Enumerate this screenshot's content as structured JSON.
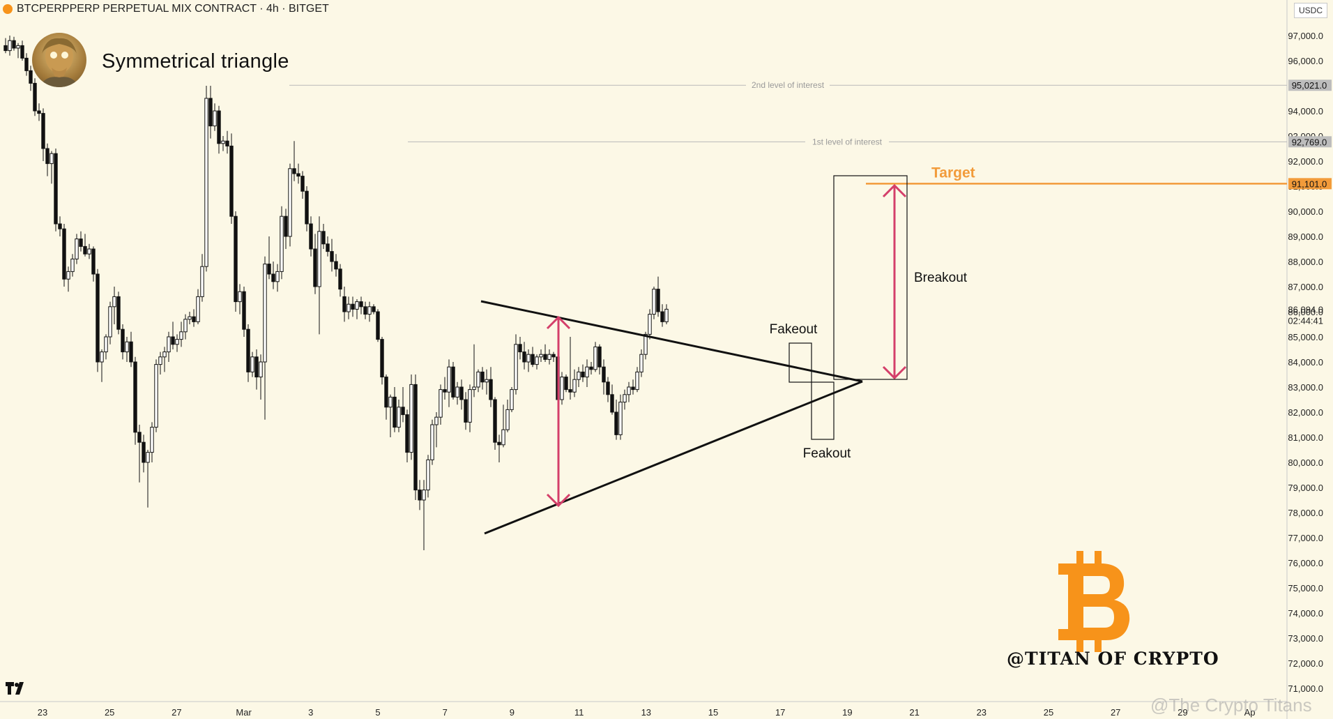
{
  "header": {
    "symbol_text": "BTCPERPPERP PERPETUAL MIX CONTRACT · 4h · BITGET",
    "currency": "USDC"
  },
  "overlay": {
    "title": "Symmetrical triangle",
    "handle": "@TITAN OF CRYPTO",
    "watermark": "@The Crypto Titans",
    "platform_logo": "TradingView",
    "brand_icon": "bitcoin-b-icon"
  },
  "colors": {
    "background": "#fcf8e6",
    "candle": "#111111",
    "target": "#f29b3a",
    "arrow": "#d43f6a",
    "bitcoin": "#f7931a"
  },
  "chart_data": {
    "type": "candlestick",
    "timeframe": "4h",
    "ylim": [
      70500,
      98200
    ],
    "y_ticks": [
      "97,000.0",
      "96,000.0",
      "95,000.0",
      "94,000.0",
      "93,000.0",
      "92,000.0",
      "91,000.0",
      "90,000.0",
      "89,000.0",
      "88,000.0",
      "87,000.0",
      "86,000.0",
      "85,000.0",
      "84,000.0",
      "83,000.0",
      "82,000.0",
      "81,000.0",
      "80,000.0",
      "79,000.0",
      "78,000.0",
      "77,000.0",
      "76,000.0",
      "75,000.0",
      "74,000.0",
      "73,000.0",
      "72,000.0",
      "71,000.0"
    ],
    "x_ticks": [
      "23",
      "25",
      "27",
      "Mar",
      "3",
      "5",
      "7",
      "9",
      "11",
      "13",
      "15",
      "17",
      "19",
      "21",
      "23",
      "25",
      "27",
      "29",
      "Ap"
    ],
    "price_tags": [
      {
        "label": "95,021.0",
        "value": 95021,
        "style": "grey"
      },
      {
        "label": "92,769.0",
        "value": 92769,
        "style": "grey"
      },
      {
        "label": "91,101.0",
        "value": 91101,
        "style": "orange"
      },
      {
        "label": "86,094.0",
        "value": 86094,
        "style": "plain"
      },
      {
        "label": "02:44:41",
        "value": 85650,
        "style": "plain"
      }
    ],
    "levels": [
      {
        "label": "2nd level of interest",
        "price": 95021
      },
      {
        "label": "1st level of interest",
        "price": 92769
      },
      {
        "label": "Target",
        "price": 91101
      }
    ],
    "annotations": [
      "Fakeout",
      "Feakout",
      "Breakout"
    ],
    "ohlc": [
      [
        96600,
        96900,
        96300,
        96400
      ],
      [
        96400,
        97000,
        96200,
        96800
      ],
      [
        96800,
        96950,
        96400,
        96500
      ],
      [
        96500,
        96700,
        96100,
        96600
      ],
      [
        96600,
        96800,
        96000,
        96100
      ],
      [
        96100,
        96300,
        95400,
        95600
      ],
      [
        95600,
        95800,
        94800,
        95100
      ],
      [
        95100,
        95300,
        93800,
        94000
      ],
      [
        94000,
        94300,
        93600,
        93900
      ],
      [
        93900,
        94100,
        92000,
        92500
      ],
      [
        92500,
        92700,
        91400,
        91900
      ],
      [
        91900,
        92400,
        91100,
        92300
      ],
      [
        92300,
        92500,
        89200,
        89500
      ],
      [
        89500,
        89800,
        89000,
        89300
      ],
      [
        89300,
        89500,
        87000,
        87300
      ],
      [
        87300,
        87800,
        86800,
        87600
      ],
      [
        87600,
        88300,
        87400,
        88100
      ],
      [
        88100,
        89100,
        87900,
        88900
      ],
      [
        88900,
        89200,
        88400,
        88600
      ],
      [
        88600,
        89100,
        88200,
        88300
      ],
      [
        88300,
        88700,
        88100,
        88500
      ],
      [
        88500,
        88600,
        87200,
        87500
      ],
      [
        87500,
        87700,
        83600,
        84000
      ],
      [
        84000,
        84500,
        83200,
        84400
      ],
      [
        84400,
        85100,
        84100,
        85000
      ],
      [
        85000,
        86400,
        84700,
        86200
      ],
      [
        86200,
        87000,
        85500,
        86600
      ],
      [
        86600,
        86800,
        85100,
        85300
      ],
      [
        85300,
        85500,
        84100,
        84400
      ],
      [
        84400,
        85000,
        84000,
        84800
      ],
      [
        84800,
        85200,
        83800,
        84000
      ],
      [
        84000,
        84200,
        80700,
        81200
      ],
      [
        81200,
        81500,
        79200,
        80800
      ],
      [
        80800,
        81100,
        79600,
        80000
      ],
      [
        80000,
        80500,
        78200,
        80400
      ],
      [
        80400,
        81600,
        80000,
        81400
      ],
      [
        81400,
        84100,
        81200,
        83900
      ],
      [
        83900,
        84400,
        83500,
        84200
      ],
      [
        84200,
        84600,
        83600,
        84400
      ],
      [
        84400,
        85200,
        84000,
        85000
      ],
      [
        85000,
        85600,
        84500,
        84700
      ],
      [
        84700,
        85100,
        84400,
        84900
      ],
      [
        84900,
        85600,
        84600,
        85200
      ],
      [
        85200,
        85900,
        84900,
        85700
      ],
      [
        85700,
        86000,
        85500,
        85800
      ],
      [
        85800,
        86100,
        85400,
        85600
      ],
      [
        85600,
        86900,
        85500,
        86600
      ],
      [
        86600,
        88300,
        86400,
        87800
      ],
      [
        87800,
        95000,
        87600,
        94500
      ],
      [
        94500,
        95000,
        92900,
        93400
      ],
      [
        93400,
        94300,
        93200,
        94000
      ],
      [
        94000,
        94200,
        92300,
        92700
      ],
      [
        92700,
        93000,
        92400,
        92800
      ],
      [
        92800,
        93200,
        92300,
        92600
      ],
      [
        92600,
        93100,
        89500,
        89800
      ],
      [
        89800,
        90000,
        86000,
        86400
      ],
      [
        86400,
        87100,
        85900,
        86800
      ],
      [
        86800,
        87000,
        85000,
        85300
      ],
      [
        85300,
        85500,
        83200,
        83600
      ],
      [
        83600,
        84400,
        83400,
        84200
      ],
      [
        84200,
        84500,
        82900,
        83400
      ],
      [
        83400,
        84300,
        82500,
        84000
      ],
      [
        84000,
        88200,
        81700,
        87900
      ],
      [
        87900,
        89000,
        87300,
        87500
      ],
      [
        87500,
        88000,
        86900,
        87200
      ],
      [
        87200,
        87900,
        86800,
        87600
      ],
      [
        87600,
        90200,
        87300,
        89800
      ],
      [
        89800,
        90100,
        88500,
        89000
      ],
      [
        89000,
        91900,
        88600,
        91700
      ],
      [
        91700,
        92800,
        91200,
        91500
      ],
      [
        91500,
        91900,
        91100,
        91400
      ],
      [
        91400,
        91600,
        90500,
        90800
      ],
      [
        90800,
        91000,
        89200,
        89500
      ],
      [
        89500,
        89800,
        88200,
        88500
      ],
      [
        88500,
        89100,
        86700,
        87000
      ],
      [
        87000,
        89800,
        85100,
        89200
      ],
      [
        89200,
        89500,
        88500,
        88700
      ],
      [
        88700,
        89000,
        88200,
        88400
      ],
      [
        88400,
        88900,
        87600,
        88000
      ],
      [
        88000,
        88300,
        87400,
        87700
      ],
      [
        87700,
        87900,
        86600,
        86900
      ],
      [
        86600,
        87000,
        85600,
        86000
      ],
      [
        86000,
        86600,
        85700,
        86300
      ],
      [
        86300,
        86600,
        85800,
        86100
      ],
      [
        86100,
        86500,
        85700,
        86400
      ],
      [
        86400,
        86600,
        85900,
        86200
      ],
      [
        86200,
        86400,
        85700,
        85900
      ],
      [
        85900,
        86400,
        85600,
        86200
      ],
      [
        86200,
        86300,
        85900,
        86000
      ],
      [
        86000,
        86100,
        84800,
        84900
      ],
      [
        84900,
        85000,
        83100,
        83400
      ],
      [
        83400,
        83500,
        81700,
        82200
      ],
      [
        82200,
        82700,
        81000,
        82600
      ],
      [
        82600,
        83000,
        81200,
        81400
      ],
      [
        81400,
        82500,
        81200,
        82200
      ],
      [
        82200,
        83000,
        81600,
        81900
      ],
      [
        81900,
        82100,
        80000,
        80400
      ],
      [
        80400,
        83500,
        80100,
        83100
      ],
      [
        83100,
        83500,
        78500,
        78900
      ],
      [
        78900,
        79300,
        78100,
        78500
      ],
      [
        78500,
        79300,
        76500,
        78900
      ],
      [
        78900,
        80300,
        78600,
        80100
      ],
      [
        80100,
        81700,
        79900,
        81500
      ],
      [
        81500,
        82000,
        80600,
        81800
      ],
      [
        81800,
        83100,
        81500,
        82900
      ],
      [
        82900,
        83400,
        82500,
        82800
      ],
      [
        82800,
        84100,
        82200,
        83800
      ],
      [
        83800,
        84000,
        82500,
        82600
      ],
      [
        82600,
        83200,
        82300,
        83000
      ],
      [
        83000,
        83300,
        82100,
        82500
      ],
      [
        82500,
        82800,
        81300,
        81600
      ],
      [
        81600,
        83100,
        81200,
        82900
      ],
      [
        82900,
        84700,
        82600,
        83000
      ],
      [
        83000,
        83700,
        82800,
        83600
      ],
      [
        83600,
        83800,
        82900,
        83200
      ],
      [
        83200,
        83700,
        82700,
        83300
      ],
      [
        83300,
        83800,
        82200,
        82500
      ],
      [
        82500,
        82600,
        80500,
        80800
      ],
      [
        80800,
        81100,
        80000,
        80700
      ],
      [
        80700,
        82300,
        80600,
        81300
      ],
      [
        81300,
        82500,
        81200,
        82100
      ],
      [
        82100,
        83000,
        82000,
        82900
      ],
      [
        82900,
        85100,
        82700,
        84700
      ],
      [
        84700,
        85000,
        84100,
        84400
      ],
      [
        84400,
        84800,
        83700,
        84000
      ],
      [
        84000,
        84500,
        83600,
        84300
      ],
      [
        84300,
        84600,
        83800,
        83900
      ],
      [
        83900,
        84300,
        83700,
        84200
      ],
      [
        84200,
        84500,
        84000,
        84300
      ],
      [
        84300,
        84700,
        84000,
        84100
      ],
      [
        84100,
        84500,
        83900,
        84300
      ],
      [
        84300,
        84400,
        84000,
        84200
      ],
      [
        84200,
        84500,
        82300,
        82500
      ],
      [
        82500,
        83600,
        82300,
        83400
      ],
      [
        83400,
        83500,
        82800,
        82900
      ],
      [
        82900,
        85000,
        82500,
        82800
      ],
      [
        82800,
        83700,
        82600,
        83300
      ],
      [
        83300,
        83800,
        83000,
        83600
      ],
      [
        83600,
        83900,
        83200,
        83400
      ],
      [
        83400,
        84100,
        83000,
        83800
      ],
      [
        83800,
        84000,
        83500,
        83700
      ],
      [
        83700,
        84800,
        83600,
        84600
      ],
      [
        84600,
        84700,
        83500,
        83800
      ],
      [
        83800,
        84100,
        82700,
        83200
      ],
      [
        83200,
        83400,
        82400,
        82700
      ],
      [
        82700,
        83100,
        81900,
        82000
      ],
      [
        82000,
        82500,
        80900,
        81100
      ],
      [
        81100,
        82700,
        80900,
        82400
      ],
      [
        82400,
        82900,
        82100,
        82700
      ],
      [
        82700,
        83200,
        82400,
        83000
      ],
      [
        83000,
        83300,
        82700,
        82900
      ],
      [
        82900,
        83800,
        82800,
        83600
      ],
      [
        83600,
        84500,
        83400,
        84300
      ],
      [
        84300,
        85200,
        84100,
        85100
      ],
      [
        85100,
        86100,
        84900,
        85900
      ],
      [
        85900,
        87000,
        85700,
        86900
      ],
      [
        86900,
        87400,
        85800,
        86000
      ],
      [
        86000,
        86300,
        85400,
        85600
      ],
      [
        85600,
        86300,
        85500,
        86100
      ]
    ]
  }
}
